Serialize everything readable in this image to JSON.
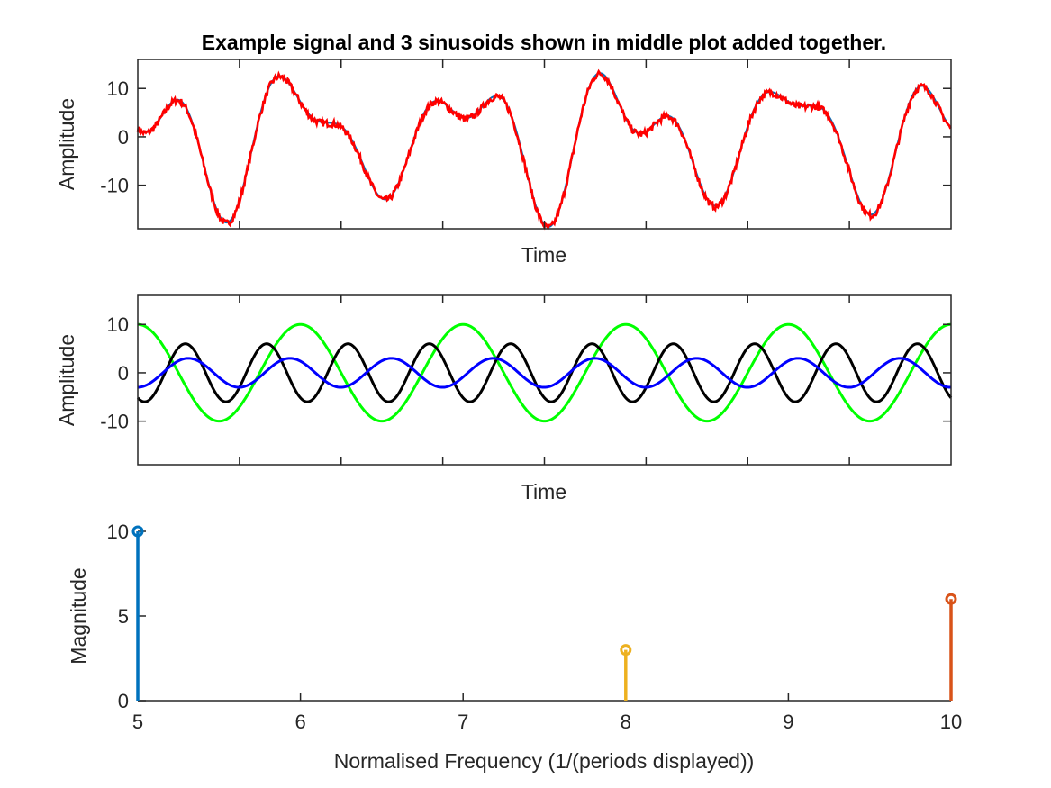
{
  "figure": {
    "title": "Example signal and 3 sinusoids shown in middle plot added together."
  },
  "chart_data": [
    {
      "type": "line",
      "panel": "top",
      "xlabel": "Time",
      "ylabel": "Amplitude",
      "xlim": [
        0,
        1
      ],
      "ylim": [
        -19,
        16
      ],
      "yticks": [
        10,
        0,
        -10
      ],
      "ytick_labels": [
        "10",
        "0",
        "-10"
      ],
      "xticks_unlabeled": [
        0.125,
        0.25,
        0.375,
        0.5,
        0.625,
        0.75,
        0.875
      ],
      "series": [
        {
          "color": "#0072BD",
          "formula": "sum of the three middle-plot sinusoids"
        },
        {
          "color": "#FF0000",
          "formula": "sum of the three middle-plot sinusoids with small noise"
        }
      ]
    },
    {
      "type": "line",
      "panel": "middle",
      "xlabel": "Time",
      "ylabel": "Amplitude",
      "xlim": [
        0,
        1
      ],
      "ylim": [
        -19,
        16
      ],
      "yticks": [
        10,
        0,
        -10
      ],
      "ytick_labels": [
        "10",
        "0",
        "-10"
      ],
      "xticks_unlabeled": [
        0.125,
        0.25,
        0.375,
        0.5,
        0.625,
        0.75,
        0.875
      ],
      "series": [
        {
          "color": "#00FF00",
          "amplitude": 10,
          "frequency": 5,
          "phase": 1.5708
        },
        {
          "color": "#000000",
          "amplitude": 6,
          "frequency": 10,
          "phase": -2.1
        },
        {
          "color": "#0000FF",
          "amplitude": 3,
          "frequency": 8,
          "phase": -1.55
        }
      ]
    },
    {
      "type": "stem",
      "panel": "bottom",
      "xlabel": "Normalised Frequency (1/(periods displayed))",
      "ylabel": "Magnitude",
      "xlim": [
        5,
        10
      ],
      "ylim": [
        0,
        10
      ],
      "xticks": [
        5,
        6,
        7,
        8,
        9,
        10
      ],
      "xtick_labels": [
        "5",
        "6",
        "7",
        "8",
        "9",
        "10"
      ],
      "yticks": [
        0,
        5,
        10
      ],
      "ytick_labels": [
        "0",
        "5",
        "10"
      ],
      "stems": [
        {
          "x": 5,
          "y": 10,
          "color": "#0072BD"
        },
        {
          "x": 8,
          "y": 3,
          "color": "#EDB120"
        },
        {
          "x": 10,
          "y": 6,
          "color": "#D95319"
        }
      ]
    }
  ]
}
